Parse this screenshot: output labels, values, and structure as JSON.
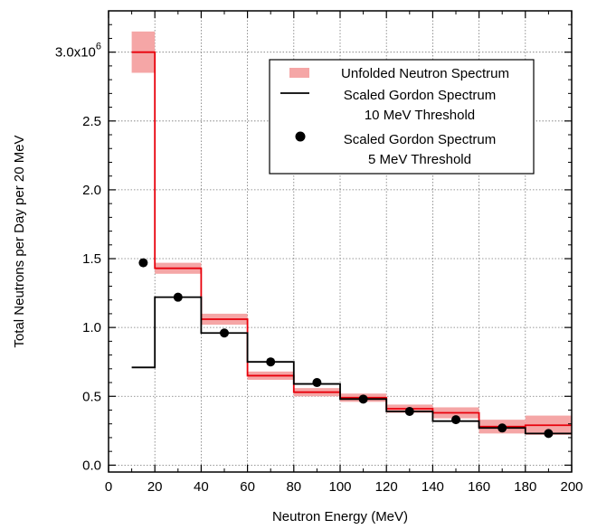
{
  "chart_data": {
    "type": "step",
    "xlabel": "Neutron Energy (MeV)",
    "ylabel": "Total Neutrons per Day per 20 MeV",
    "xlim": [
      0,
      200
    ],
    "ylim": [
      -0.05,
      3.3
    ],
    "y_scale_factor_label": "x10",
    "y_scale_exponent": "6",
    "grid": true,
    "legend_position": "top-right",
    "x_ticks": [
      0,
      20,
      40,
      60,
      80,
      100,
      120,
      140,
      160,
      180,
      200
    ],
    "x_tick_labels": [
      "0",
      "20",
      "40",
      "60",
      "80",
      "100",
      "120",
      "140",
      "160",
      "180",
      "200"
    ],
    "y_ticks": [
      0.0,
      0.5,
      1.0,
      1.5,
      2.0,
      2.5,
      3.0
    ],
    "y_tick_labels": [
      "0.0",
      "0.5",
      "1.0",
      "1.5",
      "2.0",
      "2.5",
      "3.0"
    ],
    "bin_edges": [
      10,
      20,
      40,
      60,
      80,
      100,
      120,
      140,
      160,
      180,
      200
    ],
    "series": [
      {
        "name": "Unfolded Neutron Spectrum",
        "style": "step-with-error-band",
        "color": "#e8000b",
        "band_color": "#f5a6a6",
        "values": [
          3.0,
          1.43,
          1.06,
          0.65,
          0.53,
          0.49,
          0.41,
          0.38,
          0.28,
          0.29
        ],
        "errors": [
          0.15,
          0.04,
          0.04,
          0.03,
          0.03,
          0.03,
          0.03,
          0.04,
          0.05,
          0.07
        ]
      },
      {
        "name": "Scaled Gordon Spectrum\n10 MeV Threshold",
        "style": "step",
        "color": "#000000",
        "values": [
          0.71,
          1.22,
          0.96,
          0.75,
          0.59,
          0.48,
          0.39,
          0.32,
          0.27,
          0.23
        ]
      },
      {
        "name": "Scaled Gordon Spectrum\n5 MeV Threshold",
        "style": "points",
        "color": "#000000",
        "x": [
          15,
          30,
          50,
          70,
          90,
          110,
          130,
          150,
          170,
          190
        ],
        "y": [
          1.47,
          1.22,
          0.96,
          0.75,
          0.6,
          0.48,
          0.39,
          0.33,
          0.27,
          0.23
        ]
      }
    ]
  }
}
